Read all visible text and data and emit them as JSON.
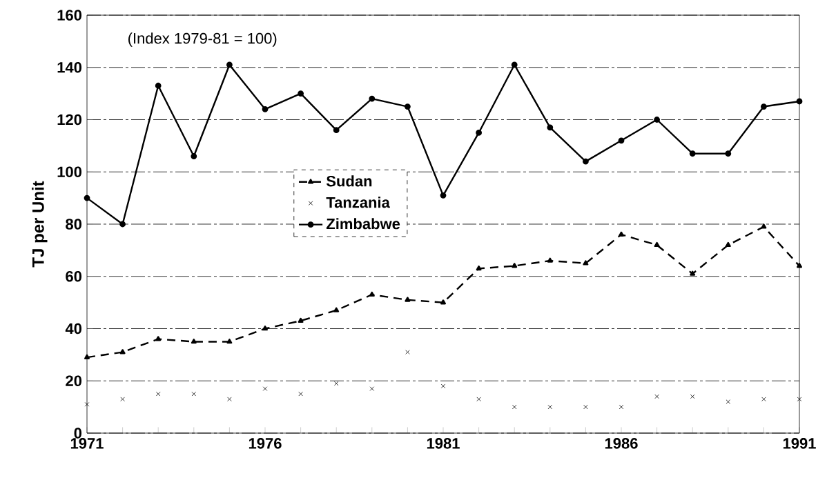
{
  "chart_data": {
    "type": "line",
    "ylabel": "TJ per Unit",
    "annotations": [
      "(Index 1979-81 = 100)"
    ],
    "x": [
      1971,
      1972,
      1973,
      1974,
      1975,
      1976,
      1977,
      1978,
      1979,
      1980,
      1981,
      1982,
      1983,
      1984,
      1985,
      1986,
      1987,
      1988,
      1989,
      1990,
      1991
    ],
    "xlim": [
      1971,
      1991
    ],
    "xticks": [
      1971,
      {
        "value": 1972,
        "label": null
      },
      {
        "value": 1973,
        "label": null
      },
      {
        "value": 1974,
        "label": null
      },
      {
        "value": 1975,
        "label": null
      },
      1976,
      {
        "value": 1977,
        "label": null
      },
      {
        "value": 1978,
        "label": null
      },
      {
        "value": 1979,
        "label": null
      },
      {
        "value": 1980,
        "label": null
      },
      1981,
      {
        "value": 1982,
        "label": null
      },
      {
        "value": 1983,
        "label": null
      },
      {
        "value": 1984,
        "label": null
      },
      {
        "value": 1985,
        "label": null
      },
      1986,
      {
        "value": 1987,
        "label": null
      },
      {
        "value": 1988,
        "label": null
      },
      {
        "value": 1989,
        "label": null
      },
      {
        "value": 1990,
        "label": null
      },
      1991
    ],
    "ylim": [
      0,
      160
    ],
    "yticks": [
      0,
      20,
      40,
      60,
      80,
      100,
      120,
      140,
      160
    ],
    "grid": "y",
    "legend": "left",
    "series": [
      {
        "name": "Sudan",
        "color": "#000000",
        "line_style": "dashed",
        "marker": "triangle",
        "values": [
          29,
          31,
          36,
          35,
          35,
          40,
          43,
          47,
          53,
          51,
          50,
          63,
          64,
          66,
          65,
          76,
          72,
          61,
          72,
          79,
          64
        ]
      },
      {
        "name": "Tanzania",
        "type": "scatter",
        "color": "#000000",
        "marker": "cross",
        "values": [
          11,
          13,
          15,
          15,
          13,
          17,
          15,
          19,
          17,
          31,
          18,
          13,
          10,
          10,
          10,
          10,
          14,
          14,
          12,
          13,
          13
        ]
      },
      {
        "name": "Zimbabwe",
        "color": "#000000",
        "line_style": "solid",
        "marker": "circle",
        "values": [
          90,
          80,
          133,
          106,
          141,
          124,
          130,
          116,
          128,
          125,
          91,
          115,
          141,
          117,
          104,
          112,
          120,
          107,
          107,
          125,
          127
        ]
      }
    ]
  }
}
